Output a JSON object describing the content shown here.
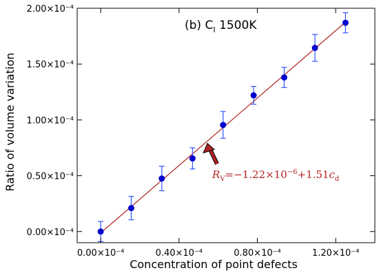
{
  "chart_data": {
    "type": "scatter",
    "title_main": "(b) C",
    "title_sub": "I",
    "title_tail": " 1500K",
    "xlabel": "Concentration of point defects",
    "ylabel": "Ratio of volume variation",
    "xlim": [
      -1.2e-05,
      0.00014
    ],
    "ylim": [
      -1e-05,
      0.0002
    ],
    "x_ticks": [
      0.0,
      4e-05,
      8e-05,
      0.00012
    ],
    "x_tick_labels": [
      "0.00×10⁻⁴",
      "0.40×10⁻⁴",
      "0.80×10⁻⁴",
      "1.20×10⁻⁴"
    ],
    "y_ticks": [
      0.0,
      5e-05,
      0.0001,
      0.00015,
      0.0002
    ],
    "y_tick_labels": [
      "0.00×10⁻⁴",
      "0.50×10⁻⁴",
      "1.00×10⁻⁴",
      "1.50×10⁻⁴",
      "2.00×10⁻⁴"
    ],
    "grid": false,
    "series": [
      {
        "x": [
          0.0,
          1.56e-05,
          3.12e-05,
          4.69e-05,
          6.25e-05,
          7.81e-05,
          9.37e-05,
          0.0001094,
          0.000125
        ],
        "y": [
          0.0,
          2.1e-05,
          4.75e-05,
          6.55e-05,
          9.55e-05,
          0.000122,
          0.000138,
          0.0001645,
          0.000187
        ],
        "yerr": [
          9e-06,
          1.05e-05,
          1.1e-05,
          9.5e-06,
          1.2e-05,
          8e-06,
          9e-06,
          1.2e-05,
          9e-06
        ],
        "color": "#0000cc",
        "errorbar_color": "#3355ff"
      }
    ],
    "fit": {
      "intercept": -1.22e-06,
      "slope": 1.51,
      "color": "#b22222"
    },
    "annotation": {
      "prefix": "R",
      "prefix_sub": "V",
      "eq_mid": "=−1.22×10",
      "exp": "−6",
      "eq_tail": "+1.51",
      "var": "c",
      "var_sub": "d",
      "color": "#b22222",
      "arrow_color": "#b22222",
      "point_x": 5.45e-05,
      "point_y": 7.9e-05
    },
    "colors": {
      "marker": "#0000cc",
      "errorbar": "#3355ff",
      "fit": "#b22222"
    }
  }
}
